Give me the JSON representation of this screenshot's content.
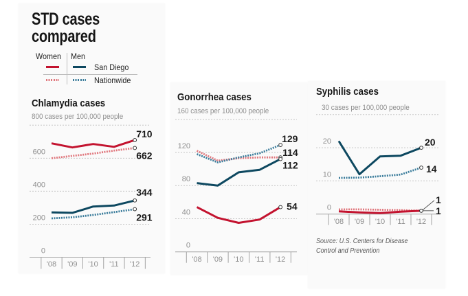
{
  "header": {
    "title_line1": "STD cases",
    "title_line2": "compared"
  },
  "legend": {
    "col_women": "Women",
    "col_men": "Men",
    "row_san_diego": "San Diego",
    "row_nationwide": "Nationwide"
  },
  "colors": {
    "women_san_diego": "#c3132f",
    "women_nationwide": "#e0767c",
    "men_san_diego": "#0d4860",
    "men_nationwide": "#3a7c9b",
    "gridline": "#c4c4c4",
    "axis": "#a3a3a3",
    "label_dark": "#1b1b1b",
    "label_muted": "#8e8e8e"
  },
  "source": {
    "line1": "Source: U.S. Centers for Disease",
    "line2": "Control and Prevention"
  },
  "chart_data": [
    {
      "type": "line",
      "title": "Chlamydia cases",
      "subtitle": "800 cases per 100,000 people",
      "xlabel": "",
      "ylabel": "cases per 100,000 people",
      "ylim": [
        0,
        800
      ],
      "grid": true,
      "x": [
        2008,
        2009,
        2010,
        2011,
        2012
      ],
      "categories": [
        "'08",
        "'09",
        "'10",
        "'11",
        "'12"
      ],
      "yticks": {
        "values": [
          0,
          200,
          400,
          600
        ],
        "labels": [
          "0",
          "200",
          "400",
          "600"
        ]
      },
      "series": [
        {
          "name": "Women, San Diego",
          "group": "Women",
          "area": "San Diego",
          "style": "solid",
          "color": "#c3132f",
          "values": [
            690,
            665,
            686,
            669,
            710
          ],
          "end_label": "710"
        },
        {
          "name": "Women, Nationwide",
          "group": "Women",
          "area": "Nationwide",
          "style": "dotted",
          "color": "#e0767c",
          "values": [
            600,
            614,
            628,
            646,
            662
          ],
          "end_label": "662"
        },
        {
          "name": "Men, San Diego",
          "group": "Men",
          "area": "San Diego",
          "style": "solid",
          "color": "#0d4860",
          "values": [
            272,
            269,
            307,
            313,
            344
          ],
          "end_label": "344"
        },
        {
          "name": "Men, Nationwide",
          "group": "Men",
          "area": "Nationwide",
          "style": "dotted",
          "color": "#3a7c9b",
          "values": [
            235,
            242,
            256,
            273,
            291
          ],
          "end_label": "291"
        }
      ]
    },
    {
      "type": "line",
      "title": "Gonorrhea cases",
      "subtitle": "160 cases per 100,000 people",
      "xlabel": "",
      "ylabel": "cases per 100,000 people",
      "ylim": [
        0,
        160
      ],
      "grid": true,
      "x": [
        2008,
        2009,
        2010,
        2011,
        2012
      ],
      "categories": [
        "'08",
        "'09",
        "'10",
        "'11",
        "'12"
      ],
      "yticks": {
        "values": [
          0,
          40,
          80,
          120
        ],
        "labels": [
          "0",
          "40",
          "80",
          "120"
        ]
      },
      "series": [
        {
          "name": "Women, San Diego",
          "group": "Women",
          "area": "San Diego",
          "style": "solid",
          "color": "#c3132f",
          "values": [
            54,
            41,
            35,
            39,
            54
          ],
          "end_label": "54"
        },
        {
          "name": "Women, Nationwide",
          "group": "Women",
          "area": "Nationwide",
          "style": "dotted",
          "color": "#e0767c",
          "values": [
            122,
            110,
            113,
            114,
            114
          ],
          "end_label": "114"
        },
        {
          "name": "Men, San Diego",
          "group": "Men",
          "area": "San Diego",
          "style": "solid",
          "color": "#0d4860",
          "values": [
            83,
            80,
            96,
            99,
            112
          ],
          "end_label": "112"
        },
        {
          "name": "Men, Nationwide",
          "group": "Men",
          "area": "Nationwide",
          "style": "dotted",
          "color": "#3a7c9b",
          "values": [
            118,
            108,
            114,
            119,
            129
          ],
          "end_label": "129"
        }
      ]
    },
    {
      "type": "line",
      "title": "Syphilis cases",
      "subtitle": "30 cases per 100,000 people",
      "xlabel": "",
      "ylabel": "cases per 100,000 people",
      "ylim": [
        0,
        30
      ],
      "grid": true,
      "x": [
        2008,
        2009,
        2010,
        2011,
        2012
      ],
      "categories": [
        "'08",
        "'09",
        "'10",
        "'11",
        "'12"
      ],
      "yticks": {
        "values": [
          0,
          10,
          20
        ],
        "labels": [
          "0",
          "10",
          "20"
        ]
      },
      "series": [
        {
          "name": "Women, San Diego",
          "group": "Women",
          "area": "San Diego",
          "style": "solid",
          "color": "#c3132f",
          "values": [
            0.8,
            0.5,
            0.3,
            0.7,
            1
          ],
          "end_label": "1"
        },
        {
          "name": "Women, Nationwide",
          "group": "Women",
          "area": "Nationwide",
          "style": "dotted",
          "color": "#e0767c",
          "values": [
            1.4,
            1.4,
            1.3,
            1.2,
            1
          ],
          "end_label": "1"
        },
        {
          "name": "Men, San Diego",
          "group": "Men",
          "area": "San Diego",
          "style": "solid",
          "color": "#0d4860",
          "values": [
            22,
            12,
            17.4,
            17.6,
            20
          ],
          "end_label": "20"
        },
        {
          "name": "Men, Nationwide",
          "group": "Men",
          "area": "Nationwide",
          "style": "dotted",
          "color": "#3a7c9b",
          "values": [
            10.9,
            11,
            11.4,
            11.9,
            14
          ],
          "end_label": "14"
        }
      ]
    }
  ]
}
